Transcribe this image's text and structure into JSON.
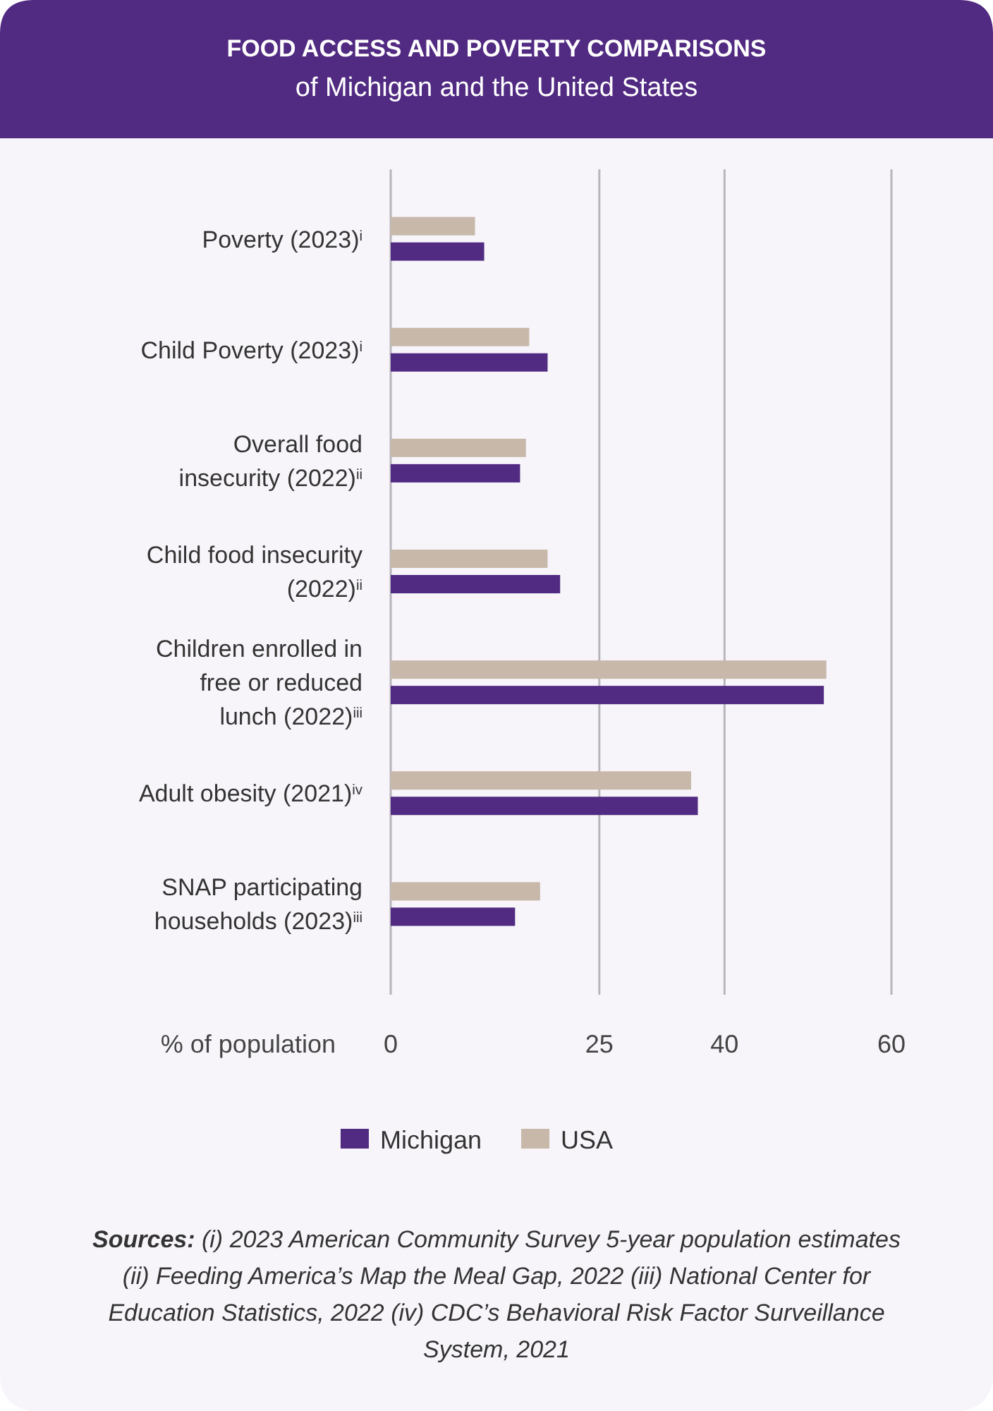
{
  "chart_data": {
    "type": "bar",
    "orientation": "horizontal",
    "title": "FOOD ACCESS AND POVERTY COMPARISONS",
    "subtitle": "of Michigan and the United States",
    "xlabel": "% of population",
    "categories": [
      "Poverty (2023)$^{i}$",
      "Child Poverty (2023)$^{i}$",
      "Overall food insecurity (2022)$^{ii}$",
      "Child food insecurity (2022)$^{ii}$",
      "Children enrolled in free or reduced lunch (2022)$^{iii}$",
      "Adult obesity  (2021)$^{iv}$",
      "SNAP participating households (2023)$^{iii}$"
    ],
    "series": [
      {
        "name": "Michigan",
        "color": "#512a82",
        "values": [
          11.2,
          18.8,
          15.5,
          20.3,
          51.9,
          36.8,
          14.9
        ]
      },
      {
        "name": "USA",
        "color": "#c8b8aa",
        "values": [
          10.1,
          16.6,
          16.2,
          18.8,
          52.2,
          36.0,
          17.9
        ]
      }
    ],
    "xlim": [
      0,
      60
    ],
    "xticks": [
      0,
      25,
      40,
      60
    ],
    "grid": "x",
    "legend": "bottom",
    "annotations": [
      "Sources: (i) 2023 American Community Survey 5-year population estimates (ii) Feeding America’s Map the Meal Gap, 2022 (iii) National Center for Education Statistics, 2022 (iv) CDC’s Behavioral Risk Factor Surveillance System, 2021"
    ]
  }
}
